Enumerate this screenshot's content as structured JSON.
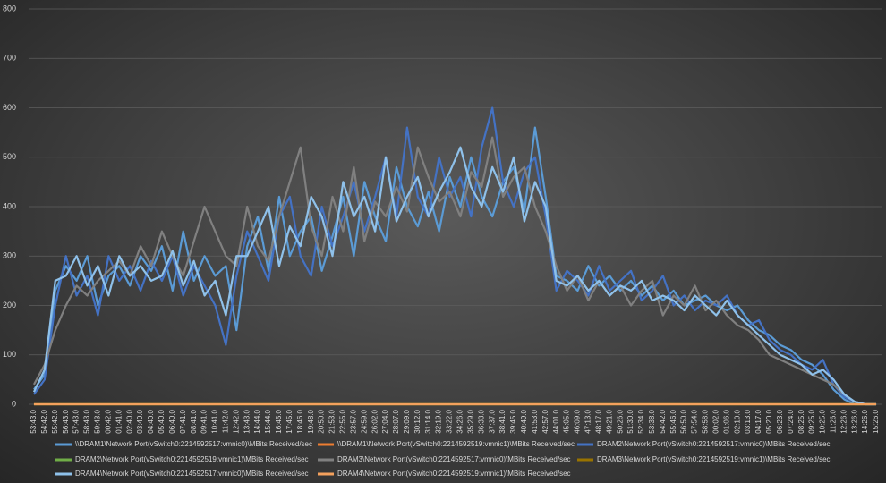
{
  "chart_data": {
    "type": "line",
    "categories": [
      "53:43.0",
      "54:42.0",
      "55:42.0",
      "56:43.0",
      "57:43.0",
      "58:43.0",
      "59:43.0",
      "00:42.0",
      "01:41.0",
      "02:40.0",
      "03:40.0",
      "04:40.0",
      "05:40.0",
      "06:40.0",
      "07:41.0",
      "08:41.0",
      "09:41.0",
      "10:41.0",
      "11:42.0",
      "12:42.0",
      "13:43.0",
      "14:44.0",
      "15:44.0",
      "16:45.0",
      "17:45.0",
      "18:46.0",
      "19:48.0",
      "20:50.0",
      "21:53.0",
      "22:55.0",
      "23:57.0",
      "24:59.0",
      "26:02.0",
      "27:04.0",
      "28:07.0",
      "29:09.0",
      "30:12.0",
      "31:14.0",
      "32:19.0",
      "33:22.0",
      "34:26.0",
      "35:29.0",
      "36:33.0",
      "37:37.0",
      "38:41.0",
      "39:45.0",
      "40:49.0",
      "41:53.0",
      "42:57.0",
      "44:01.0",
      "45:05.0",
      "46:09.0",
      "47:13.0",
      "48:17.0",
      "49:21.0",
      "50:26.0",
      "51:30.0",
      "52:34.0",
      "53:38.0",
      "54:42.0",
      "55:46.0",
      "56:50.0",
      "57:54.0",
      "58:58.0",
      "00:02.0",
      "01:06.0",
      "02:10.0",
      "03:13.0",
      "04:17.0",
      "05:20.0",
      "06:23.0",
      "07:24.0",
      "08:25.0",
      "09:25.0",
      "10:25.0",
      "11:26.0",
      "12:26.0",
      "13:26.0",
      "14:26.0",
      "15:26.0"
    ],
    "series": [
      {
        "name": "\\\\DRAM1\\Network Port(vSwitch0:2214592517:vmnic0)\\MBits Received/sec",
        "color": "#5b9bd5",
        "values": [
          30,
          60,
          230,
          280,
          250,
          300,
          200,
          260,
          280,
          240,
          300,
          270,
          320,
          230,
          350,
          250,
          300,
          260,
          280,
          150,
          320,
          380,
          270,
          420,
          300,
          350,
          380,
          270,
          340,
          420,
          300,
          450,
          380,
          330,
          480,
          400,
          360,
          430,
          350,
          460,
          400,
          500,
          420,
          380,
          450,
          480,
          390,
          560,
          420,
          260,
          250,
          230,
          280,
          240,
          260,
          230,
          250,
          220,
          240,
          210,
          230,
          200,
          210,
          220,
          200,
          190,
          200,
          170,
          150,
          140,
          120,
          110,
          90,
          80,
          60,
          30,
          10,
          0,
          0,
          0
        ]
      },
      {
        "name": "\\\\DRAM1\\Network Port(vSwitch0:2214592519:vmnic1)\\MBits Received/sec",
        "color": "#ed7d31",
        "values": [
          0,
          0,
          0,
          0,
          0,
          0,
          0,
          0,
          0,
          0,
          0,
          0,
          0,
          0,
          0,
          0,
          0,
          0,
          0,
          0,
          0,
          0,
          0,
          0,
          0,
          0,
          0,
          0,
          0,
          0,
          0,
          0,
          0,
          0,
          0,
          0,
          0,
          0,
          0,
          0,
          0,
          0,
          0,
          0,
          0,
          0,
          0,
          0,
          0,
          0,
          0,
          0,
          0,
          0,
          0,
          0,
          0,
          0,
          0,
          0,
          0,
          0,
          0,
          0,
          0,
          0,
          0,
          0,
          0,
          0,
          0,
          0,
          0,
          0,
          0,
          0,
          0,
          0,
          0,
          0
        ]
      },
      {
        "name": "DRAM2\\Network Port(vSwitch0:2214592517:vmnic0)\\MBits Received/sec",
        "color": "#4472c4",
        "values": [
          20,
          50,
          200,
          300,
          220,
          260,
          180,
          300,
          250,
          280,
          230,
          290,
          250,
          300,
          220,
          280,
          240,
          200,
          120,
          260,
          350,
          300,
          250,
          380,
          420,
          300,
          260,
          400,
          320,
          380,
          450,
          350,
          420,
          500,
          380,
          560,
          420,
          380,
          500,
          420,
          460,
          380,
          520,
          600,
          450,
          400,
          470,
          500,
          380,
          230,
          270,
          250,
          220,
          280,
          230,
          250,
          270,
          210,
          230,
          260,
          200,
          220,
          190,
          210,
          200,
          220,
          180,
          160,
          170,
          130,
          110,
          100,
          80,
          70,
          90,
          40,
          15,
          5,
          0,
          0
        ]
      },
      {
        "name": "DRAM2\\Network Port(vSwitch0:2214592519:vmnic1)\\MBits Received/sec",
        "color": "#70ad47",
        "values": [
          0,
          0,
          0,
          0,
          0,
          0,
          0,
          0,
          0,
          0,
          0,
          0,
          0,
          0,
          0,
          0,
          0,
          0,
          0,
          0,
          0,
          0,
          0,
          0,
          0,
          0,
          0,
          0,
          0,
          0,
          0,
          0,
          0,
          0,
          0,
          0,
          0,
          0,
          0,
          0,
          0,
          0,
          0,
          0,
          0,
          0,
          0,
          0,
          0,
          0,
          0,
          0,
          0,
          0,
          0,
          0,
          0,
          0,
          0,
          0,
          0,
          0,
          0,
          0,
          0,
          0,
          0,
          0,
          0,
          0,
          0,
          0,
          0,
          0,
          0,
          0,
          0,
          0,
          0,
          0
        ]
      },
      {
        "name": "DRAM3\\Network Port(vSwitch0:2214592517:vmnic0)\\MBits Received/sec",
        "color": "#808080",
        "values": [
          40,
          80,
          150,
          200,
          240,
          220,
          250,
          270,
          290,
          260,
          320,
          280,
          350,
          300,
          260,
          330,
          400,
          350,
          300,
          280,
          400,
          320,
          290,
          380,
          450,
          520,
          360,
          300,
          420,
          350,
          480,
          330,
          410,
          380,
          440,
          390,
          520,
          460,
          410,
          430,
          380,
          470,
          440,
          540,
          420,
          460,
          480,
          400,
          350,
          280,
          230,
          260,
          210,
          250,
          220,
          240,
          200,
          230,
          250,
          180,
          220,
          200,
          240,
          190,
          210,
          180,
          160,
          150,
          130,
          100,
          90,
          80,
          70,
          60,
          50,
          40,
          20,
          5,
          0,
          0
        ]
      },
      {
        "name": "DRAM3\\Network Port(vSwitch0:2214592519:vmnic1)\\MBits Received/sec",
        "color": "#997300",
        "values": [
          0,
          0,
          0,
          0,
          0,
          0,
          0,
          0,
          0,
          0,
          0,
          0,
          0,
          0,
          0,
          0,
          0,
          0,
          0,
          0,
          0,
          0,
          0,
          0,
          0,
          0,
          0,
          0,
          0,
          0,
          0,
          0,
          0,
          0,
          0,
          0,
          0,
          0,
          0,
          0,
          0,
          0,
          0,
          0,
          0,
          0,
          0,
          0,
          0,
          0,
          0,
          0,
          0,
          0,
          0,
          0,
          0,
          0,
          0,
          0,
          0,
          0,
          0,
          0,
          0,
          0,
          0,
          0,
          0,
          0,
          0,
          0,
          0,
          0,
          0,
          0,
          0,
          0,
          0,
          0
        ]
      },
      {
        "name": "DRAM4\\Network Port(vSwitch0:2214592517:vmnic0)\\MBits Received/sec",
        "color": "#8fc1ea",
        "values": [
          25,
          70,
          250,
          260,
          300,
          240,
          280,
          220,
          300,
          260,
          280,
          250,
          260,
          310,
          240,
          290,
          220,
          250,
          180,
          300,
          300,
          350,
          400,
          280,
          360,
          320,
          420,
          380,
          300,
          450,
          380,
          420,
          350,
          500,
          370,
          420,
          460,
          380,
          430,
          470,
          520,
          440,
          400,
          480,
          430,
          500,
          370,
          450,
          400,
          250,
          240,
          260,
          230,
          250,
          220,
          240,
          230,
          250,
          210,
          220,
          210,
          190,
          220,
          200,
          180,
          210,
          180,
          160,
          140,
          120,
          100,
          90,
          80,
          60,
          70,
          50,
          20,
          5,
          0,
          0
        ]
      },
      {
        "name": "DRAM4\\Network Port(vSwitch0:2214592519:vmnic1)\\MBits Received/sec",
        "color": "#f4a15d",
        "values": [
          0,
          0,
          0,
          0,
          0,
          0,
          0,
          0,
          0,
          0,
          0,
          0,
          0,
          0,
          0,
          0,
          0,
          0,
          0,
          0,
          0,
          0,
          0,
          0,
          0,
          0,
          0,
          0,
          0,
          0,
          0,
          0,
          0,
          0,
          0,
          0,
          0,
          0,
          0,
          0,
          0,
          0,
          0,
          0,
          0,
          0,
          0,
          0,
          0,
          0,
          0,
          0,
          0,
          0,
          0,
          0,
          0,
          0,
          0,
          0,
          0,
          0,
          0,
          0,
          0,
          0,
          0,
          0,
          0,
          0,
          0,
          0,
          0,
          0,
          0,
          0,
          0,
          0,
          0,
          0
        ]
      }
    ],
    "ylim": [
      0,
      800
    ],
    "yticks": [
      0,
      100,
      200,
      300,
      400,
      500,
      600,
      700,
      800
    ],
    "grid": true
  }
}
